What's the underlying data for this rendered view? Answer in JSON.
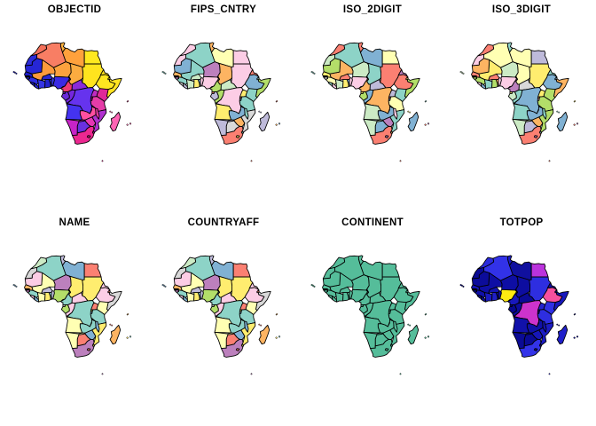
{
  "figure": {
    "background": "#FFFFFF",
    "border_color": "#000000",
    "title_color": "#000000"
  },
  "panels": [
    {
      "title": "OBJECTID",
      "default_color": "#BBBBBB",
      "colors": {
        "algeria": "#F87E64",
        "libya": "#FFA13C",
        "egypt": "#FFE81F",
        "sudan": "#FFE41E",
        "chad": "#FCAC40",
        "niger": "#FCA23E",
        "mali": "#FC9A3C",
        "mauritania": "#2626D6",
        "morocco": "#F4705A",
        "western_sahara": "#2B2BD9",
        "tunisia": "#FFB23C",
        "eritrea": "#FFE11C",
        "ethiopia": "#FFE620",
        "somalia": "#FFE322",
        "djibouti": "#FFDE1A",
        "kenya": "#E02898",
        "uganda": "#C12BC1",
        "tanzania": "#E63CA8",
        "rwanda": "#CC28B8",
        "burundi": "#D02CB0",
        "senegal": "#1C1CC8",
        "gambia": "#2A2ADA",
        "guinea_bissau": "#2222D0",
        "guinea": "#2E2EE0",
        "sierra_leone": "#1E1ECA",
        "liberia": "#2626D4",
        "cote_divoire": "#3434E4",
        "ghana": "#2222CE",
        "togo": "#2C2CDA",
        "benin": "#3636E8",
        "burkina_faso": "#2828D2",
        "nigeria": "#3A2AE4",
        "cameroon": "#EE3A72",
        "car": "#8A2BD9",
        "eq_guinea": "#7A2BD0",
        "gabon": "#6A2BD8",
        "congo": "#7526DE",
        "drc": "#6633EE",
        "angola": "#4433F0",
        "zambia": "#FF4FA0",
        "malawi": "#E83AA0",
        "mozambique": "#B030D0",
        "zimbabwe": "#E636B4",
        "botswana": "#6A30E0",
        "namibia": "#C724C7",
        "south_africa": "#EC2891",
        "lesotho": "#DB2486",
        "swaziland": "#D828A8",
        "madagascar": "#FF64B4",
        "cape_verde": "#2222CC",
        "comoros": "#FF5FA8",
        "seychelles": "#FF58A4",
        "mauritius": "#FF6CB0",
        "reunion": "#FF70B4",
        "prince_edward": "#EC2891"
      }
    },
    {
      "title": "FIPS_CNTRY",
      "default_color": "#BBBBBB",
      "colors": {
        "algeria": "#8DD3C7",
        "libya": "#FFFFB3",
        "egypt": "#FCCDE5",
        "sudan": "#FCCDE5",
        "chad": "#FDB462",
        "niger": "#BC80BD",
        "mali": "#8DD3C7",
        "mauritania": "#80B1D3",
        "morocco": "#FCCDE5",
        "western_sahara": "#FCCDE5",
        "tunisia": "#FDB462",
        "eritrea": "#FB8072",
        "ethiopia": "#80B1D3",
        "somalia": "#B3DE69",
        "djibouti": "#8DD3C7",
        "kenya": "#8DD3C7",
        "uganda": "#FFED6F",
        "tanzania": "#8DD3C7",
        "rwanda": "#FB8072",
        "burundi": "#80B1D3",
        "senegal": "#FDB462",
        "gambia": "#FFED6F",
        "guinea_bissau": "#BC80BD",
        "guinea": "#8DD3C7",
        "sierra_leone": "#D9D9D9",
        "liberia": "#BEBADA",
        "cote_divoire": "#CCEBC5",
        "ghana": "#FFED6F",
        "togo": "#80B1D3",
        "benin": "#FCCDE5",
        "burkina_faso": "#CCEBC5",
        "nigeria": "#FCCDE5",
        "cameroon": "#B3DE69",
        "car": "#CCEBC5",
        "eq_guinea": "#FB8072",
        "gabon": "#BEBADA",
        "congo": "#B3DE69",
        "drc": "#FCCDE5",
        "angola": "#FFED6F",
        "zambia": "#80B1D3",
        "malawi": "#8DD3C7",
        "mozambique": "#D9D9D9",
        "zimbabwe": "#FDB462",
        "botswana": "#D9D9D9",
        "namibia": "#BEBADA",
        "south_africa": "#FB8072",
        "lesotho": "#FFED6F",
        "swaziland": "#8DD3C7",
        "madagascar": "#BEBADA",
        "cape_verde": "#8DD3C7",
        "comoros": "#BEBADA",
        "seychelles": "#FB8072",
        "mauritius": "#80B1D3",
        "reunion": "#FDB462",
        "prince_edward": "#FB8072"
      }
    },
    {
      "title": "ISO_2DIGIT",
      "default_color": "#BBBBBB",
      "colors": {
        "algeria": "#8DD3C7",
        "libya": "#80B1D3",
        "egypt": "#FFFFB3",
        "sudan": "#FB8072",
        "chad": "#8DD3C7",
        "niger": "#CCEBC5",
        "mali": "#FDB462",
        "mauritania": "#B3DE69",
        "morocco": "#FB8072",
        "western_sahara": "#CCEBC5",
        "tunisia": "#FB8072",
        "eritrea": "#BC80BD",
        "ethiopia": "#FB8072",
        "somalia": "#B3DE69",
        "djibouti": "#FFED6F",
        "kenya": "#8DD3C7",
        "uganda": "#BEBADA",
        "tanzania": "#FFFFB3",
        "rwanda": "#FB8072",
        "burundi": "#80B1D3",
        "senegal": "#FFED6F",
        "gambia": "#BC80BD",
        "guinea_bissau": "#D9D9D9",
        "guinea": "#FFFFB3",
        "sierra_leone": "#8DD3C7",
        "liberia": "#FCCDE5",
        "cote_divoire": "#CCEBC5",
        "ghana": "#FFED6F",
        "togo": "#80B1D3",
        "benin": "#FCCDE5",
        "burkina_faso": "#FB8072",
        "nigeria": "#FCCDE5",
        "cameroon": "#FDB462",
        "car": "#BEBADA",
        "eq_guinea": "#FFED6F",
        "gabon": "#B3DE69",
        "congo": "#80B1D3",
        "drc": "#FDB462",
        "angola": "#CCEBC5",
        "zambia": "#80B1D3",
        "malawi": "#FCCDE5",
        "mozambique": "#8DD3C7",
        "zimbabwe": "#BC80BD",
        "botswana": "#80B1D3",
        "namibia": "#CCEBC5",
        "south_africa": "#FB8072",
        "lesotho": "#BC80BD",
        "swaziland": "#FDB462",
        "madagascar": "#80B1D3",
        "cape_verde": "#8DD3C7",
        "comoros": "#FFED6F",
        "seychelles": "#8DD3C7",
        "mauritius": "#BC80BD",
        "reunion": "#FB8072",
        "prince_edward": "#FB8072"
      }
    },
    {
      "title": "ISO_3DIGIT",
      "default_color": "#BBBBBB",
      "colors": {
        "algeria": "#FFFFB3",
        "libya": "#FFFFB3",
        "egypt": "#BEBADA",
        "sudan": "#FFED6F",
        "chad": "#FFFFB3",
        "niger": "#CCEBC5",
        "mali": "#FFED6F",
        "mauritania": "#FDB462",
        "morocco": "#FB8072",
        "western_sahara": "#FCCDE5",
        "tunisia": "#8DD3C7",
        "eritrea": "#8DD3C7",
        "ethiopia": "#80B1D3",
        "somalia": "#FDB462",
        "djibouti": "#80B1D3",
        "kenya": "#B3DE69",
        "uganda": "#FFED6F",
        "tanzania": "#B3DE69",
        "rwanda": "#FDB462",
        "burundi": "#FCCDE5",
        "senegal": "#FB8072",
        "gambia": "#8DD3C7",
        "guinea_bissau": "#B3DE69",
        "guinea": "#B3DE69",
        "sierra_leone": "#FCCDE5",
        "liberia": "#80B1D3",
        "cote_divoire": "#8DD3C7",
        "ghana": "#B3DE69",
        "togo": "#FDB462",
        "benin": "#FCCDE5",
        "burkina_faso": "#FB8072",
        "nigeria": "#FCCDE5",
        "cameroon": "#BC80BD",
        "car": "#D9D9D9",
        "eq_guinea": "#FFED6F",
        "gabon": "#CCEBC5",
        "congo": "#8DD3C7",
        "drc": "#80B1D3",
        "angola": "#8DD3C7",
        "zambia": "#80B1D3",
        "malawi": "#8DD3C7",
        "mozambique": "#B3DE69",
        "zimbabwe": "#FDB462",
        "botswana": "#BEBADA",
        "namibia": "#CCEBC5",
        "south_africa": "#FB8072",
        "lesotho": "#BC80BD",
        "swaziland": "#8DD3C7",
        "madagascar": "#80B1D3",
        "cape_verde": "#CCEBC5",
        "comoros": "#8DD3C7",
        "seychelles": "#FFED6F",
        "mauritius": "#BC80BD",
        "reunion": "#FB8072",
        "prince_edward": "#FB8072"
      }
    },
    {
      "title": "NAME",
      "default_color": "#BBBBBB",
      "colors": {
        "algeria": "#8DD3C7",
        "libya": "#80B1D3",
        "egypt": "#FB8072",
        "sudan": "#FFED6F",
        "chad": "#FFED6F",
        "niger": "#BC80BD",
        "mali": "#FFFFB3",
        "mauritania": "#FCCDE5",
        "morocco": "#CCEBC5",
        "western_sahara": "#D9D9D9",
        "tunisia": "#BEBADA",
        "eritrea": "#FCCDE5",
        "ethiopia": "#FCCDE5",
        "somalia": "#D9D9D9",
        "djibouti": "#FB8072",
        "kenya": "#FFFFB3",
        "uganda": "#FB8072",
        "tanzania": "#8DD3C7",
        "rwanda": "#FFED6F",
        "burundi": "#80B1D3",
        "senegal": "#FDB462",
        "gambia": "#FFED6F",
        "guinea_bissau": "#BC80BD",
        "guinea": "#8DD3C7",
        "sierra_leone": "#FCCDE5",
        "liberia": "#80B1D3",
        "cote_divoire": "#FFFFB3",
        "ghana": "#FFED6F",
        "togo": "#8DD3C7",
        "benin": "#BEBADA",
        "burkina_faso": "#BEBADA",
        "nigeria": "#B3DE69",
        "cameroon": "#8DD3C7",
        "car": "#FCCDE5",
        "eq_guinea": "#D9D9D9",
        "gabon": "#B3DE69",
        "congo": "#FCCDE5",
        "drc": "#8DD3C7",
        "angola": "#FFFFB3",
        "zambia": "#8DD3C7",
        "malawi": "#80B1D3",
        "mozambique": "#FFED6F",
        "zimbabwe": "#80B1D3",
        "botswana": "#FB8072",
        "namibia": "#FFFFB3",
        "south_africa": "#BC80BD",
        "lesotho": "#FB8072",
        "swaziland": "#FFED6F",
        "madagascar": "#FDB462",
        "cape_verde": "#80B1D3",
        "comoros": "#FB8072",
        "seychelles": "#FDB462",
        "mauritius": "#8DD3C7",
        "reunion": "#FFED6F",
        "prince_edward": "#BC80BD"
      }
    },
    {
      "title": "COUNTRYAFF",
      "default_color": "#BBBBBB",
      "colors": {
        "algeria": "#8DD3C7",
        "libya": "#80B1D3",
        "egypt": "#FB8072",
        "sudan": "#FFED6F",
        "chad": "#FFED6F",
        "niger": "#BC80BD",
        "mali": "#FFFFB3",
        "mauritania": "#FCCDE5",
        "morocco": "#CCEBC5",
        "western_sahara": "#D9D9D9",
        "tunisia": "#BEBADA",
        "eritrea": "#FCCDE5",
        "ethiopia": "#FCCDE5",
        "somalia": "#D9D9D9",
        "djibouti": "#FB8072",
        "kenya": "#FFFFB3",
        "uganda": "#FB8072",
        "tanzania": "#8DD3C7",
        "rwanda": "#FFED6F",
        "burundi": "#80B1D3",
        "senegal": "#FDB462",
        "gambia": "#FFED6F",
        "guinea_bissau": "#BC80BD",
        "guinea": "#8DD3C7",
        "sierra_leone": "#FCCDE5",
        "liberia": "#80B1D3",
        "cote_divoire": "#FFFFB3",
        "ghana": "#FFED6F",
        "togo": "#8DD3C7",
        "benin": "#BEBADA",
        "burkina_faso": "#BEBADA",
        "nigeria": "#B3DE69",
        "cameroon": "#8DD3C7",
        "car": "#FCCDE5",
        "eq_guinea": "#D9D9D9",
        "gabon": "#B3DE69",
        "congo": "#FCCDE5",
        "drc": "#8DD3C7",
        "angola": "#FFFFB3",
        "zambia": "#8DD3C7",
        "malawi": "#80B1D3",
        "mozambique": "#FFED6F",
        "zimbabwe": "#80B1D3",
        "botswana": "#FB8072",
        "namibia": "#FFFFB3",
        "south_africa": "#BC80BD",
        "lesotho": "#FB8072",
        "swaziland": "#FFED6F",
        "madagascar": "#FDB462",
        "cape_verde": "#80B1D3",
        "comoros": "#FB8072",
        "seychelles": "#FDB462",
        "mauritius": "#8DD3C7",
        "reunion": "#FFED6F",
        "prince_edward": "#BC80BD"
      }
    },
    {
      "title": "CONTINENT",
      "default_color": "#55BD9A",
      "colors": {}
    },
    {
      "title": "TOTPOP",
      "default_color": "#1212AE",
      "colors": {
        "algeria": "#3232E8",
        "libya": "#10109E",
        "egypt": "#BB33DD",
        "sudan": "#2E2EE0",
        "chad": "#0D0DA0",
        "niger": "#0E0EA4",
        "mali": "#0E0EA4",
        "mauritania": "#0C0C9A",
        "morocco": "#2B2BDC",
        "western_sahara": "#0A0A94",
        "tunisia": "#1A1AC2",
        "eritrea": "#0E0EA2",
        "ethiopia": "#F7509E",
        "somalia": "#1818BC",
        "djibouti": "#080890",
        "kenya": "#3030E4",
        "uganda": "#2222D0",
        "tanzania": "#2E2EE0",
        "rwanda": "#1212B0",
        "burundi": "#1111AC",
        "senegal": "#1414B4",
        "gambia": "#0A0A94",
        "guinea_bissau": "#090990",
        "guinea": "#1010A8",
        "sierra_leone": "#0D0DA0",
        "liberia": "#0B0B98",
        "cote_divoire": "#1A1ABE",
        "ghana": "#1E1EC6",
        "togo": "#0D0DA0",
        "benin": "#0E0EA2",
        "burkina_faso": "#1414B2",
        "nigeria": "#FFEC12",
        "cameroon": "#1818BC",
        "car": "#0A0A96",
        "eq_guinea": "#070788",
        "gabon": "#08088E",
        "congo": "#0C0C9C",
        "drc": "#CC33CC",
        "angola": "#1111AA",
        "zambia": "#1010A8",
        "malawi": "#1414B2",
        "mozambique": "#1C1CC2",
        "zimbabwe": "#1616B8",
        "botswana": "#0A0A94",
        "namibia": "#0A0A94",
        "south_africa": "#3333E8",
        "lesotho": "#0C0C9A",
        "swaziland": "#0B0B96",
        "madagascar": "#2020CA",
        "cape_verde": "#0A0A94",
        "comoros": "#0A0A94",
        "seychelles": "#070788",
        "mauritius": "#0E0EA2",
        "reunion": "#0E0EA2",
        "prince_edward": "#3333E8"
      }
    }
  ]
}
